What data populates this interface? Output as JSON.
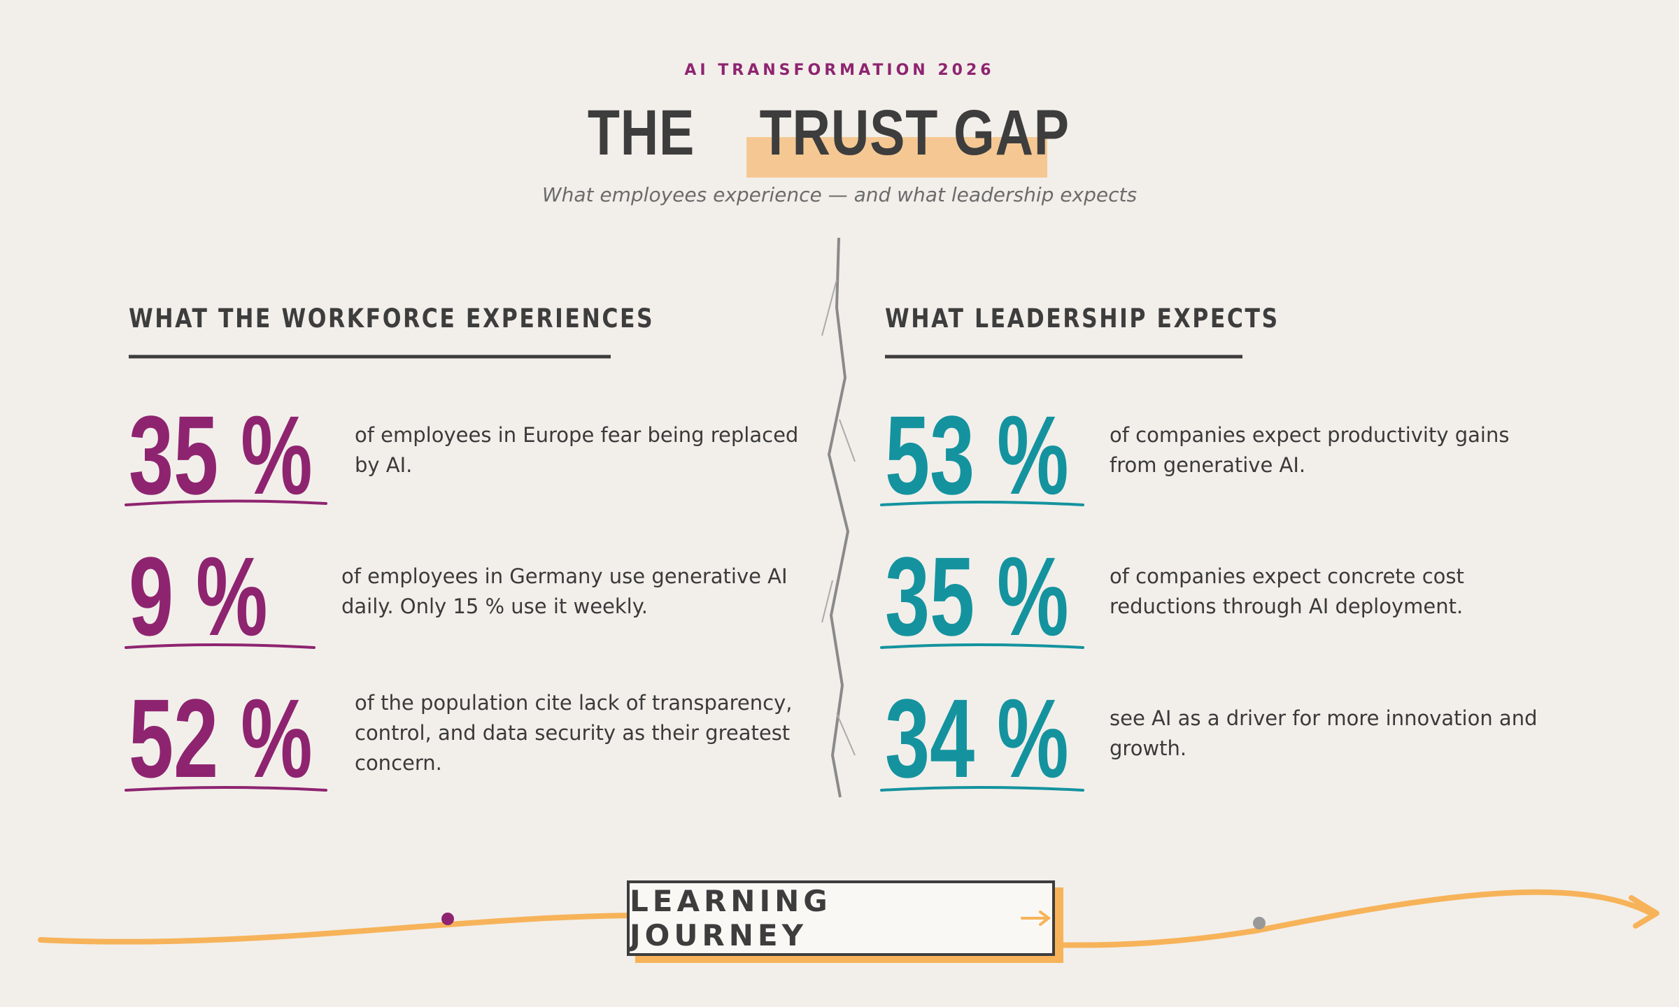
{
  "header": {
    "eyebrow": "AI TRANSFORMATION 2026",
    "title_plain": "THE",
    "title_highlight": "TRUST GAP",
    "subtitle": "What employees experience — and what leadership expects"
  },
  "columns": [
    {
      "heading": "WHAT THE WORKFORCE EXPERIENCES",
      "stats": [
        {
          "figure": "35 %",
          "text": "of employees in Europe fear being replaced by AI."
        },
        {
          "figure": "9 %",
          "text": "of employees in Germany use generative AI daily. Only 15 % use it weekly."
        },
        {
          "figure": "52 %",
          "text": "of the population cite lack of transparency, control, and data security as their greatest concern."
        }
      ]
    },
    {
      "heading": "WHAT LEADERSHIP EXPECTS",
      "stats": [
        {
          "figure": "53 %",
          "text": "of companies expect productivity gains from generative AI."
        },
        {
          "figure": "35 %",
          "text": "of companies expect concrete cost reductions through AI deployment."
        },
        {
          "figure": "34 %",
          "text": "see AI as a driver for more innovation and growth."
        }
      ]
    }
  ],
  "button": {
    "label": "LEARNING JOURNEY"
  }
}
